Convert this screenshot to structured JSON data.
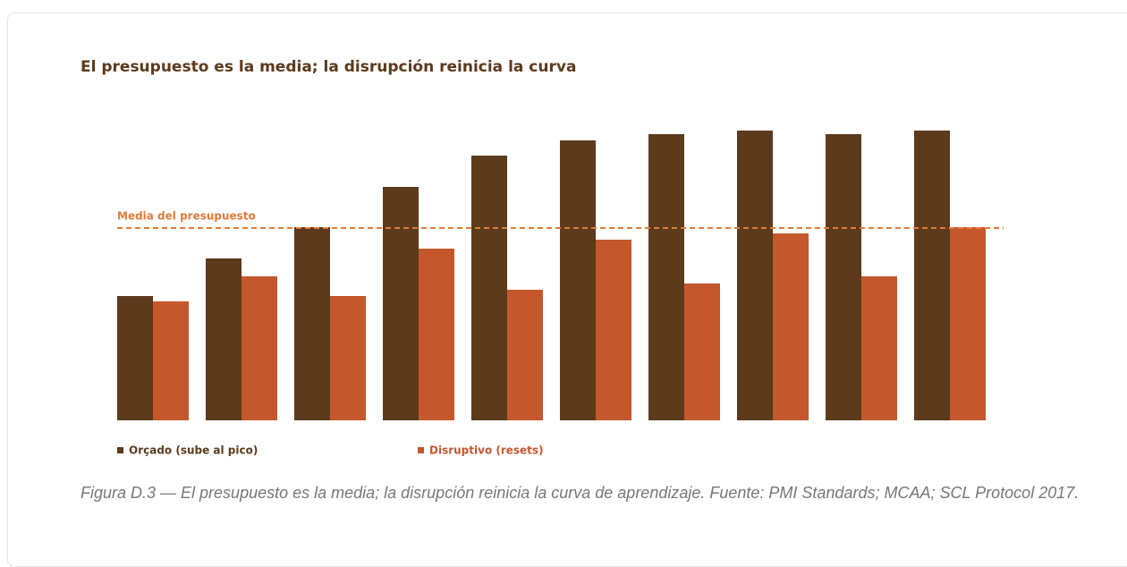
{
  "chart_data": {
    "type": "bar",
    "title": "El presupuesto es la media; la disrupción reinicia la curva",
    "categories": [
      null,
      null,
      null,
      null,
      null,
      null,
      null,
      null,
      null,
      null
    ],
    "series": [
      {
        "name": "Orçado (sube al pico)",
        "color": "#5c3a1c",
        "values": [
          139,
          181,
          216,
          261,
          296,
          313,
          320,
          324,
          320,
          324
        ]
      },
      {
        "name": "Disruptivo (resets)",
        "color": "#c4582c",
        "values": [
          133,
          161,
          139,
          192,
          146,
          202,
          153,
          209,
          161,
          216
        ]
      }
    ],
    "ylim": [
      0,
      330
    ],
    "reference_line": {
      "label": "Media del presupuesto",
      "value": 215,
      "color": "#e07b39"
    },
    "legend": "bottom-left",
    "caption": "Figura D.3 — El presupuesto es la media; la disrupción reinicia la curva de aprendizaje. Fuente: PMI Standards; MCAA; SCL Protocol 2017."
  }
}
